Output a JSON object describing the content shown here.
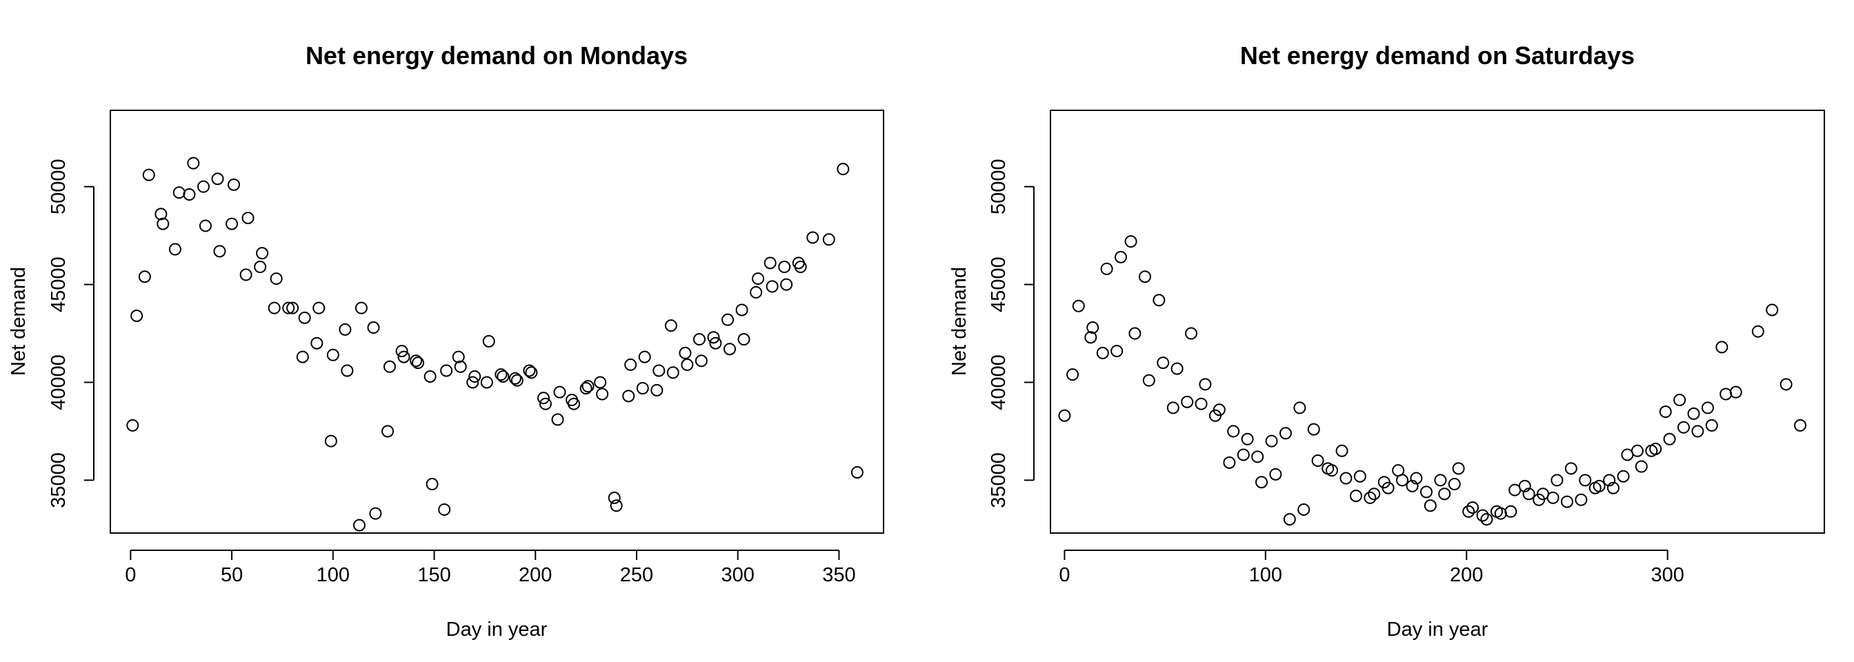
{
  "chart_data": [
    {
      "type": "scatter",
      "title": "Net energy demand on Mondays",
      "xlabel": "Day in year",
      "ylabel": "Net demand",
      "xlim": [
        -10,
        372
      ],
      "ylim": [
        32300,
        53900
      ],
      "xticks": [
        0,
        50,
        100,
        150,
        200,
        250,
        300,
        350
      ],
      "yticks": [
        35000,
        40000,
        45000,
        50000
      ],
      "x": [
        1,
        3,
        7,
        9,
        15,
        16,
        22,
        24,
        29,
        31,
        36,
        37,
        43,
        44,
        50,
        51,
        57,
        58,
        64,
        65,
        71,
        72,
        78,
        80,
        85,
        86,
        92,
        93,
        99,
        100,
        106,
        107,
        113,
        114,
        120,
        121,
        127,
        128,
        134,
        135,
        141,
        142,
        148,
        149,
        155,
        156,
        162,
        163,
        169,
        170,
        176,
        177,
        183,
        184,
        190,
        191,
        197,
        198,
        204,
        205,
        211,
        212,
        218,
        219,
        225,
        226,
        232,
        233,
        239,
        240,
        246,
        247,
        253,
        254,
        260,
        261,
        267,
        268,
        274,
        275,
        281,
        282,
        288,
        289,
        295,
        296,
        302,
        303,
        309,
        310,
        316,
        317,
        323,
        324,
        330,
        331,
        337,
        345,
        352,
        359
      ],
      "y": [
        37800,
        43400,
        45400,
        50600,
        48600,
        48100,
        46800,
        49700,
        49600,
        51200,
        50000,
        48000,
        50400,
        46700,
        48100,
        50100,
        45500,
        48400,
        45900,
        46600,
        43800,
        45300,
        43800,
        43800,
        41300,
        43300,
        42000,
        43800,
        37000,
        41400,
        42700,
        40600,
        32700,
        43800,
        42800,
        33300,
        37500,
        40800,
        41600,
        41300,
        41100,
        41000,
        40300,
        34800,
        33500,
        40600,
        41300,
        40800,
        40000,
        40300,
        40000,
        42100,
        40400,
        40300,
        40200,
        40100,
        40600,
        40500,
        39200,
        38900,
        38100,
        39500,
        39100,
        38900,
        39700,
        39800,
        40000,
        39400,
        34100,
        33700,
        39300,
        40900,
        39700,
        41300,
        39600,
        40600,
        42900,
        40500,
        41500,
        40900,
        42200,
        41100,
        42300,
        42000,
        43200,
        41700,
        43700,
        42200,
        44600,
        45300,
        46100,
        44900,
        45900,
        45000,
        46100,
        45900,
        47400,
        47300,
        50900,
        35400
      ]
    },
    {
      "type": "scatter",
      "title": "Net energy demand on Saturdays",
      "xlabel": "Day in year",
      "ylabel": "Net demand",
      "xlim": [
        -7,
        378
      ],
      "ylim": [
        32300,
        53900
      ],
      "xticks": [
        0,
        100,
        200,
        300
      ],
      "yticks": [
        35000,
        40000,
        45000,
        50000
      ],
      "x": [
        0,
        4,
        7,
        13,
        14,
        19,
        21,
        26,
        28,
        33,
        35,
        40,
        42,
        47,
        49,
        54,
        56,
        61,
        63,
        68,
        70,
        75,
        77,
        82,
        84,
        89,
        91,
        96,
        98,
        103,
        105,
        110,
        112,
        117,
        119,
        124,
        126,
        131,
        133,
        138,
        140,
        145,
        147,
        152,
        154,
        159,
        161,
        166,
        168,
        173,
        175,
        180,
        182,
        187,
        189,
        194,
        196,
        201,
        203,
        208,
        210,
        215,
        217,
        222,
        224,
        229,
        231,
        236,
        238,
        243,
        245,
        250,
        252,
        257,
        259,
        264,
        266,
        271,
        273,
        278,
        280,
        285,
        287,
        292,
        294,
        299,
        301,
        306,
        308,
        313,
        315,
        320,
        322,
        327,
        329,
        334,
        345,
        352,
        359,
        366
      ],
      "y": [
        38300,
        40400,
        43900,
        42300,
        42800,
        41500,
        45800,
        41600,
        46400,
        47200,
        42500,
        45400,
        40100,
        44200,
        41000,
        38700,
        40700,
        39000,
        42500,
        38900,
        39900,
        38300,
        38600,
        35900,
        37500,
        36300,
        37100,
        36200,
        34900,
        37000,
        35300,
        37400,
        33000,
        38700,
        33500,
        37600,
        36000,
        35600,
        35500,
        36500,
        35100,
        34200,
        35200,
        34100,
        34300,
        34900,
        34600,
        35500,
        35000,
        34700,
        35100,
        34400,
        33700,
        35000,
        34300,
        34800,
        35600,
        33400,
        33600,
        33200,
        33000,
        33400,
        33300,
        33400,
        34500,
        34700,
        34300,
        34000,
        34300,
        34100,
        35000,
        33900,
        35600,
        34000,
        35000,
        34600,
        34700,
        35000,
        34600,
        35200,
        36300,
        36500,
        35700,
        36500,
        36600,
        38500,
        37100,
        39100,
        37700,
        38400,
        37500,
        38700,
        37800,
        41800,
        39400,
        39500,
        42600,
        43700,
        39900,
        37800
      ]
    }
  ]
}
